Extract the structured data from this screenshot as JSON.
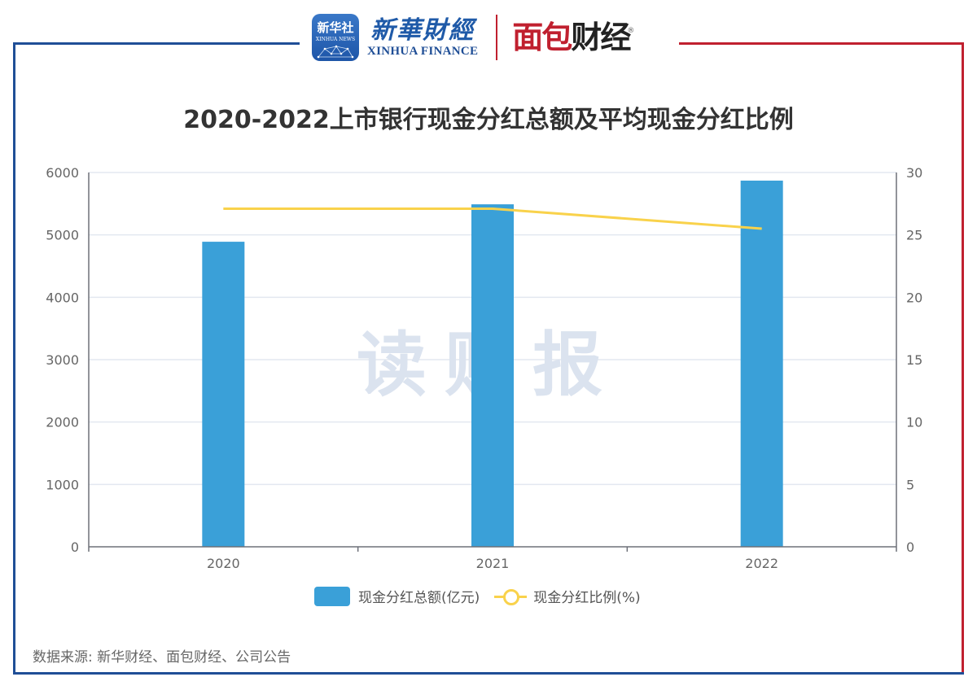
{
  "header": {
    "app_icon_cn": "新华社",
    "app_icon_en": "XINHUA NEWS",
    "brand1_cn": "新華財經",
    "brand1_en": "XINHUA FINANCE",
    "brand2_part1": "面包",
    "brand2_part2": "财经",
    "brand2_reg": "®"
  },
  "colors": {
    "frame_blue": "#1f4e96",
    "frame_red": "#c0202f",
    "bar": "#3aa0d8",
    "line": "#f9d24b",
    "watermark": "#dbe3ef"
  },
  "watermark": "读财报",
  "source": "数据来源: 新华财经、面包财经、公司公告",
  "chart_data": {
    "type": "bar",
    "title": "2020-2022上市银行现金分红总额及平均现金分红比例",
    "categories": [
      "2020",
      "2021",
      "2022"
    ],
    "series": [
      {
        "name": "现金分红总额(亿元)",
        "type": "bar",
        "axis": "left",
        "values": [
          4890,
          5490,
          5870
        ]
      },
      {
        "name": "现金分红比例(%)",
        "type": "line",
        "axis": "right",
        "values": [
          27.1,
          27.1,
          25.5
        ]
      }
    ],
    "xlabel": "",
    "ylabel": "",
    "ylim": [
      0,
      6000
    ],
    "y2lim": [
      0,
      30
    ],
    "yticks": [
      "0",
      "1000",
      "2000",
      "3000",
      "4000",
      "5000",
      "6000"
    ],
    "y2ticks": [
      "0",
      "5",
      "10",
      "15",
      "20",
      "25",
      "30"
    ],
    "grid": true,
    "legend_position": "bottom"
  }
}
